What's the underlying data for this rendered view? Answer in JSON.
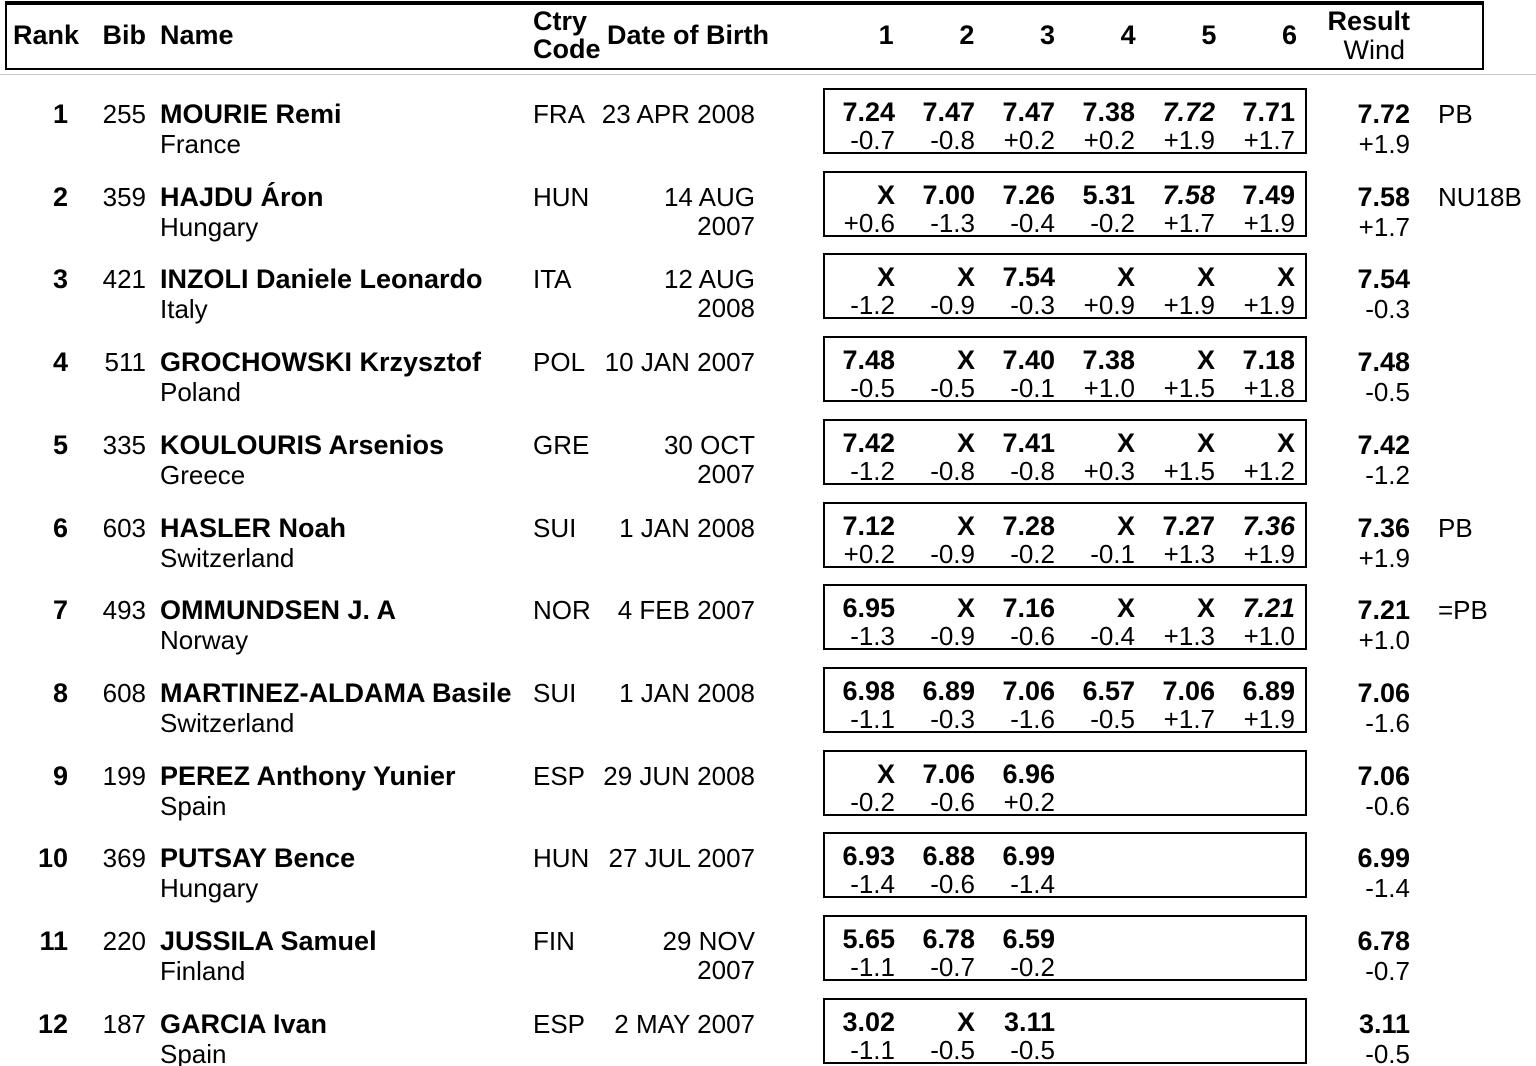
{
  "colors": {
    "text": "#000000",
    "background": "#ffffff",
    "border": "#000000",
    "header_rule": "#c9c9c9"
  },
  "header": {
    "rank": "Rank",
    "bib": "Bib",
    "name": "Name",
    "ctry_line1": "Ctry",
    "ctry_line2": "Code",
    "dob": "Date of Birth",
    "attempts": [
      "1",
      "2",
      "3",
      "4",
      "5",
      "6"
    ],
    "result": "Result",
    "wind": "Wind"
  },
  "rows": [
    {
      "rank": "1",
      "bib": "255",
      "name": "MOURIE Remi",
      "country": "France",
      "ctry_code": "FRA",
      "dob": "23 APR 2008",
      "attempts": [
        {
          "mark": "7.24",
          "wind": "-0.7"
        },
        {
          "mark": "7.47",
          "wind": "-0.8"
        },
        {
          "mark": "7.47",
          "wind": "+0.2"
        },
        {
          "mark": "7.38",
          "wind": "+0.2"
        },
        {
          "mark": "7.72",
          "wind": "+1.9",
          "italic": true
        },
        {
          "mark": "7.71",
          "wind": "+1.7"
        }
      ],
      "result": "7.72",
      "result_wind": "+1.9",
      "note": "PB"
    },
    {
      "rank": "2",
      "bib": "359",
      "name": "HAJDU Áron",
      "country": "Hungary",
      "ctry_code": "HUN",
      "dob": "14 AUG 2007",
      "attempts": [
        {
          "mark": "X",
          "wind": "+0.6"
        },
        {
          "mark": "7.00",
          "wind": "-1.3"
        },
        {
          "mark": "7.26",
          "wind": "-0.4"
        },
        {
          "mark": "5.31",
          "wind": "-0.2"
        },
        {
          "mark": "7.58",
          "wind": "+1.7",
          "italic": true
        },
        {
          "mark": "7.49",
          "wind": "+1.9"
        }
      ],
      "result": "7.58",
      "result_wind": "+1.7",
      "note": "NU18B"
    },
    {
      "rank": "3",
      "bib": "421",
      "name": "INZOLI Daniele Leonardo",
      "country": "Italy",
      "ctry_code": "ITA",
      "dob": "12 AUG 2008",
      "attempts": [
        {
          "mark": "X",
          "wind": "-1.2"
        },
        {
          "mark": "X",
          "wind": "-0.9"
        },
        {
          "mark": "7.54",
          "wind": "-0.3"
        },
        {
          "mark": "X",
          "wind": "+0.9"
        },
        {
          "mark": "X",
          "wind": "+1.9"
        },
        {
          "mark": "X",
          "wind": "+1.9"
        }
      ],
      "result": "7.54",
      "result_wind": "-0.3",
      "note": ""
    },
    {
      "rank": "4",
      "bib": "511",
      "name": "GROCHOWSKI Krzysztof",
      "country": "Poland",
      "ctry_code": "POL",
      "dob": "10 JAN 2007",
      "attempts": [
        {
          "mark": "7.48",
          "wind": "-0.5"
        },
        {
          "mark": "X",
          "wind": "-0.5"
        },
        {
          "mark": "7.40",
          "wind": "-0.1"
        },
        {
          "mark": "7.38",
          "wind": "+1.0"
        },
        {
          "mark": "X",
          "wind": "+1.5"
        },
        {
          "mark": "7.18",
          "wind": "+1.8"
        }
      ],
      "result": "7.48",
      "result_wind": "-0.5",
      "note": ""
    },
    {
      "rank": "5",
      "bib": "335",
      "name": "KOULOURIS Arsenios",
      "country": "Greece",
      "ctry_code": "GRE",
      "dob": "30 OCT 2007",
      "attempts": [
        {
          "mark": "7.42",
          "wind": "-1.2"
        },
        {
          "mark": "X",
          "wind": "-0.8"
        },
        {
          "mark": "7.41",
          "wind": "-0.8"
        },
        {
          "mark": "X",
          "wind": "+0.3"
        },
        {
          "mark": "X",
          "wind": "+1.5"
        },
        {
          "mark": "X",
          "wind": "+1.2"
        }
      ],
      "result": "7.42",
      "result_wind": "-1.2",
      "note": ""
    },
    {
      "rank": "6",
      "bib": "603",
      "name": "HASLER Noah",
      "country": "Switzerland",
      "ctry_code": "SUI",
      "dob": "1 JAN 2008",
      "attempts": [
        {
          "mark": "7.12",
          "wind": "+0.2"
        },
        {
          "mark": "X",
          "wind": "-0.9"
        },
        {
          "mark": "7.28",
          "wind": "-0.2"
        },
        {
          "mark": "X",
          "wind": "-0.1"
        },
        {
          "mark": "7.27",
          "wind": "+1.3"
        },
        {
          "mark": "7.36",
          "wind": "+1.9",
          "italic": true
        }
      ],
      "result": "7.36",
      "result_wind": "+1.9",
      "note": "PB"
    },
    {
      "rank": "7",
      "bib": "493",
      "name": "OMMUNDSEN J. A",
      "country": "Norway",
      "ctry_code": "NOR",
      "dob": "4 FEB 2007",
      "attempts": [
        {
          "mark": "6.95",
          "wind": "-1.3"
        },
        {
          "mark": "X",
          "wind": "-0.9"
        },
        {
          "mark": "7.16",
          "wind": "-0.6"
        },
        {
          "mark": "X",
          "wind": "-0.4"
        },
        {
          "mark": "X",
          "wind": "+1.3"
        },
        {
          "mark": "7.21",
          "wind": "+1.0",
          "italic": true
        }
      ],
      "result": "7.21",
      "result_wind": "+1.0",
      "note": "=PB"
    },
    {
      "rank": "8",
      "bib": "608",
      "name": "MARTINEZ-ALDAMA Basile",
      "country": "Switzerland",
      "ctry_code": "SUI",
      "dob": "1 JAN 2008",
      "attempts": [
        {
          "mark": "6.98",
          "wind": "-1.1"
        },
        {
          "mark": "6.89",
          "wind": "-0.3"
        },
        {
          "mark": "7.06",
          "wind": "-1.6"
        },
        {
          "mark": "6.57",
          "wind": "-0.5"
        },
        {
          "mark": "7.06",
          "wind": "+1.7"
        },
        {
          "mark": "6.89",
          "wind": "+1.9"
        }
      ],
      "result": "7.06",
      "result_wind": "-1.6",
      "note": ""
    },
    {
      "rank": "9",
      "bib": "199",
      "name": "PEREZ Anthony Yunier",
      "country": "Spain",
      "ctry_code": "ESP",
      "dob": "29 JUN 2008",
      "attempts": [
        {
          "mark": "X",
          "wind": "-0.2"
        },
        {
          "mark": "7.06",
          "wind": "-0.6"
        },
        {
          "mark": "6.96",
          "wind": "+0.2"
        },
        {
          "mark": "",
          "wind": ""
        },
        {
          "mark": "",
          "wind": ""
        },
        {
          "mark": "",
          "wind": ""
        }
      ],
      "result": "7.06",
      "result_wind": "-0.6",
      "note": ""
    },
    {
      "rank": "10",
      "bib": "369",
      "name": "PUTSAY Bence",
      "country": "Hungary",
      "ctry_code": "HUN",
      "dob": "27 JUL 2007",
      "attempts": [
        {
          "mark": "6.93",
          "wind": "-1.4"
        },
        {
          "mark": "6.88",
          "wind": "-0.6"
        },
        {
          "mark": "6.99",
          "wind": "-1.4"
        },
        {
          "mark": "",
          "wind": ""
        },
        {
          "mark": "",
          "wind": ""
        },
        {
          "mark": "",
          "wind": ""
        }
      ],
      "result": "6.99",
      "result_wind": "-1.4",
      "note": ""
    },
    {
      "rank": "11",
      "bib": "220",
      "name": "JUSSILA Samuel",
      "country": "Finland",
      "ctry_code": "FIN",
      "dob": "29 NOV 2007",
      "attempts": [
        {
          "mark": "5.65",
          "wind": "-1.1"
        },
        {
          "mark": "6.78",
          "wind": "-0.7"
        },
        {
          "mark": "6.59",
          "wind": "-0.2"
        },
        {
          "mark": "",
          "wind": ""
        },
        {
          "mark": "",
          "wind": ""
        },
        {
          "mark": "",
          "wind": ""
        }
      ],
      "result": "6.78",
      "result_wind": "-0.7",
      "note": ""
    },
    {
      "rank": "12",
      "bib": "187",
      "name": "GARCIA Ivan",
      "country": "Spain",
      "ctry_code": "ESP",
      "dob": "2 MAY 2007",
      "attempts": [
        {
          "mark": "3.02",
          "wind": "-1.1"
        },
        {
          "mark": "X",
          "wind": "-0.5"
        },
        {
          "mark": "3.11",
          "wind": "-0.5"
        },
        {
          "mark": "",
          "wind": ""
        },
        {
          "mark": "",
          "wind": ""
        },
        {
          "mark": "",
          "wind": ""
        }
      ],
      "result": "3.11",
      "result_wind": "-0.5",
      "note": ""
    }
  ]
}
